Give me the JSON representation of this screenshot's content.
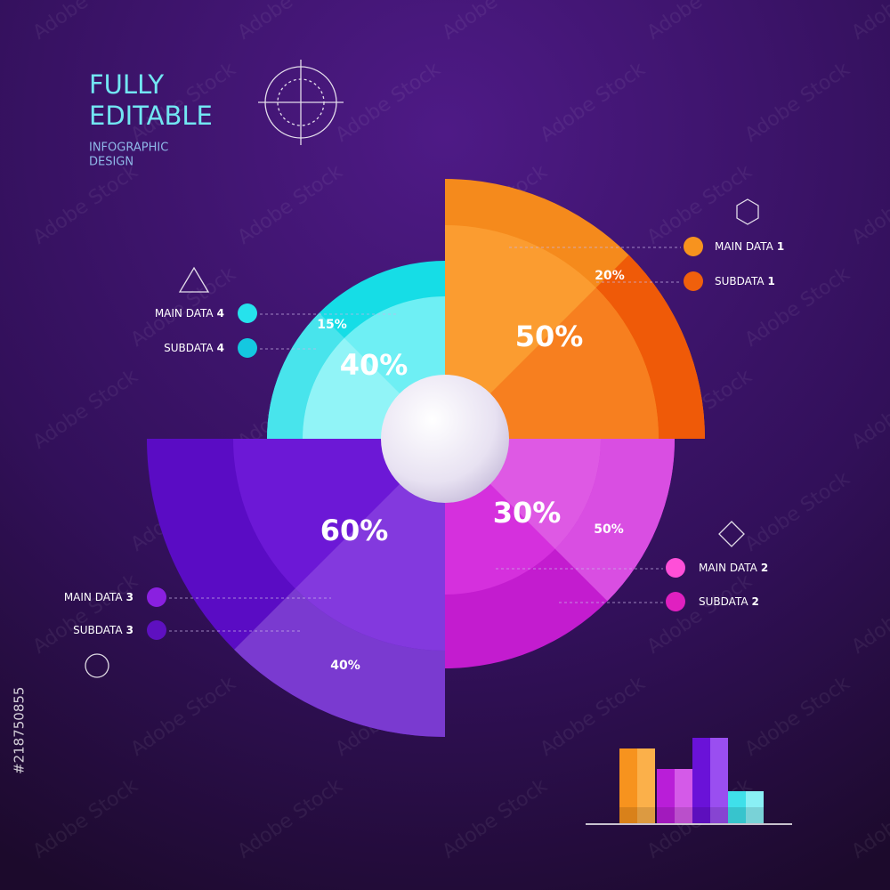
{
  "header": {
    "title_line1": "FULLY",
    "title_line2": "EDITABLE",
    "subtitle_line1": "INFOGRAPHIC",
    "subtitle_line2": "DESIGN"
  },
  "segments": [
    {
      "main": "50%",
      "sub": "20%"
    },
    {
      "main": "30%",
      "sub": "50%"
    },
    {
      "main": "60%",
      "sub": "40%"
    },
    {
      "main": "40%",
      "sub": "15%"
    }
  ],
  "legend": [
    {
      "main_label": "MAIN DATA",
      "sub_label": "SUBDATA",
      "number": "1"
    },
    {
      "main_label": "MAIN DATA",
      "sub_label": "SUBDATA",
      "number": "2"
    },
    {
      "main_label": "MAIN DATA",
      "sub_label": "SUBDATA",
      "number": "3"
    },
    {
      "main_label": "MAIN DATA",
      "sub_label": "SUBDATA",
      "number": "4"
    }
  ],
  "watermark": "Adobe Stock",
  "stock_id": "#218750855"
}
